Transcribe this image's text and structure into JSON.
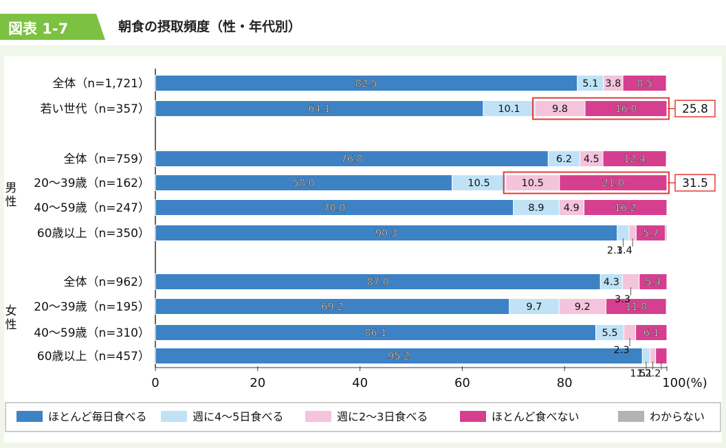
{
  "header": {
    "figure_number": "図表 1-7",
    "title": "朝食の摂取頻度（性・年代別）"
  },
  "chart_data": {
    "type": "bar",
    "orientation": "horizontal",
    "stacked": true,
    "xlim": [
      0,
      100
    ],
    "xticks": [
      "0",
      "20",
      "40",
      "60",
      "80",
      "100(%)"
    ],
    "groups": [
      {
        "label": "",
        "rows": [
          0,
          1
        ]
      },
      {
        "label": "男性",
        "rows": [
          2,
          3,
          4,
          5
        ]
      },
      {
        "label": "女性",
        "rows": [
          6,
          7,
          8,
          9
        ]
      }
    ],
    "categories": [
      "全体（n=1,721）",
      "若い世代（n=357）",
      "全体（n=759）",
      "20～39歳（n=162）",
      "40～59歳（n=247）",
      "60歳以上（n=350）",
      "全体（n=962）",
      "20～39歳（n=195）",
      "40～59歳（n=310）",
      "60歳以上（n=457）"
    ],
    "series": [
      {
        "name": "ほとんど毎日食べる",
        "color": "#3d82c4",
        "values": [
          82.5,
          64.1,
          76.8,
          58.0,
          70.0,
          90.3,
          87.0,
          69.2,
          86.1,
          95.2
        ]
      },
      {
        "name": "週に4～5日食べる",
        "color": "#bfe2f6",
        "values": [
          5.1,
          10.1,
          6.2,
          10.5,
          8.9,
          2.3,
          4.3,
          9.7,
          5.5,
          1.5
        ]
      },
      {
        "name": "週に2～3日食べる",
        "color": "#f4c3dc",
        "values": [
          3.8,
          9.8,
          4.5,
          10.5,
          4.9,
          1.4,
          3.3,
          9.2,
          2.3,
          1.1
        ]
      },
      {
        "name": "ほとんど食べない",
        "color": "#d63f8f",
        "values": [
          8.5,
          16.0,
          12.4,
          21.0,
          16.2,
          5.7,
          5.4,
          11.8,
          6.1,
          2.2
        ]
      },
      {
        "name": "わからない",
        "color": "#b3b3b3",
        "values": [
          0.1,
          0.0,
          0.1,
          0.0,
          0.0,
          0.3,
          0.0,
          0.1,
          0.0,
          0.0
        ]
      }
    ],
    "annotations": [
      {
        "row": 1,
        "text": "25.8"
      },
      {
        "row": 3,
        "text": "31.5"
      }
    ]
  }
}
